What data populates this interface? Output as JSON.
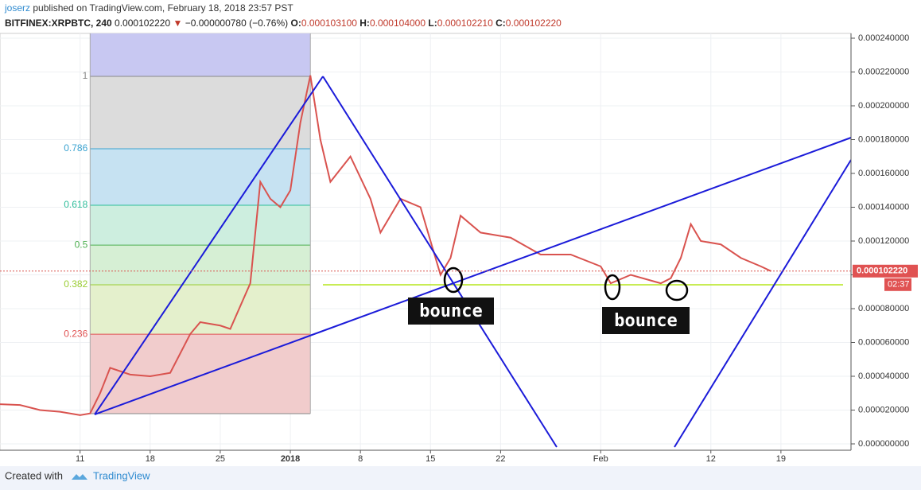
{
  "header": {
    "author": "joserz",
    "published": "published on TradingView.com, February 18, 2018 23:57 PST",
    "symbol": "BITFINEX:XRPBTC, 240",
    "last": "0.000102220",
    "arrow": "▼",
    "change": "−0.000000780 (−0.76%)",
    "open_label": "O:",
    "open": "0.000103100",
    "high_label": "H:",
    "high": "0.000104000",
    "low_label": "L:",
    "low": "0.000102210",
    "close_label": "C:",
    "close": "0.000102220"
  },
  "footer": {
    "created": "Created with",
    "brand": "TradingView"
  },
  "chart_data": {
    "type": "line",
    "x": [
      "2017-12-03",
      "2017-12-05",
      "2017-12-07",
      "2017-12-09",
      "2017-12-11",
      "2017-12-12",
      "2017-12-13",
      "2017-12-14",
      "2017-12-16",
      "2017-12-18",
      "2017-12-20",
      "2017-12-22",
      "2017-12-23",
      "2017-12-25",
      "2017-12-26",
      "2017-12-28",
      "2017-12-29",
      "2017-12-30",
      "2017-12-31",
      "2018-01-01",
      "2018-01-02",
      "2018-01-03",
      "2018-01-04",
      "2018-01-05",
      "2018-01-07",
      "2018-01-09",
      "2018-01-10",
      "2018-01-12",
      "2018-01-14",
      "2018-01-16",
      "2018-01-17",
      "2018-01-18",
      "2018-01-20",
      "2018-01-23",
      "2018-01-26",
      "2018-01-29",
      "2018-02-01",
      "2018-02-02",
      "2018-02-04",
      "2018-02-07",
      "2018-02-08",
      "2018-02-09",
      "2018-02-10",
      "2018-02-11",
      "2018-02-13",
      "2018-02-15",
      "2018-02-17",
      "2018-02-18"
    ],
    "series": [
      {
        "name": "XRPBTC",
        "color": "#d9534f",
        "values": [
          2.35e-05,
          2.3e-05,
          2e-05,
          1.9e-05,
          1.7e-05,
          1.8e-05,
          3e-05,
          4.5e-05,
          4.1e-05,
          4e-05,
          4.2e-05,
          6.5e-05,
          7.2e-05,
          7e-05,
          6.8e-05,
          9.5e-05,
          0.000155,
          0.000145,
          0.00014,
          0.00015,
          0.00019,
          0.000218,
          0.00018,
          0.000155,
          0.00017,
          0.000145,
          0.000125,
          0.000145,
          0.00014,
          0.0001,
          0.00011,
          0.000135,
          0.000125,
          0.000122,
          0.000112,
          0.000112,
          0.000105,
          9.5e-05,
          0.0001,
          9.5e-05,
          9.8e-05,
          0.00011,
          0.00013,
          0.00012,
          0.000118,
          0.00011,
          0.000105,
          0.00010222
        ]
      }
    ],
    "xlim": [
      "2017-12-03",
      "2018-02-26"
    ],
    "xticks": [
      {
        "value": "2017-12-11",
        "label": "11"
      },
      {
        "value": "2017-12-18",
        "label": "18"
      },
      {
        "value": "2017-12-25",
        "label": "25"
      },
      {
        "value": "2018-01-01",
        "label": "2018"
      },
      {
        "value": "2018-01-08",
        "label": "8"
      },
      {
        "value": "2018-01-15",
        "label": "15"
      },
      {
        "value": "2018-01-22",
        "label": "22"
      },
      {
        "value": "2018-02-01",
        "label": "Feb"
      },
      {
        "value": "2018-02-12",
        "label": "12"
      },
      {
        "value": "2018-02-19",
        "label": "19"
      }
    ],
    "ylim": [
      0,
      0.00024
    ],
    "yticks": [
      {
        "value": 0,
        "label": "0.000000000"
      },
      {
        "value": 2e-05,
        "label": "0.000020000"
      },
      {
        "value": 4e-05,
        "label": "0.000040000"
      },
      {
        "value": 6e-05,
        "label": "0.000060000"
      },
      {
        "value": 8e-05,
        "label": "0.000080000"
      },
      {
        "value": 0.0001,
        "label": "0.000100000"
      },
      {
        "value": 0.00012,
        "label": "0.000120000"
      },
      {
        "value": 0.00014,
        "label": "0.000140000"
      },
      {
        "value": 0.00016,
        "label": "0.000160000"
      },
      {
        "value": 0.00018,
        "label": "0.000180000"
      },
      {
        "value": 0.0002,
        "label": "0.000200000"
      },
      {
        "value": 0.00022,
        "label": "0.000220000"
      },
      {
        "value": 0.00024,
        "label": "0.000240000"
      }
    ],
    "grid": true,
    "price_label": {
      "value": 0.00010222,
      "label": "0.000102220",
      "countdown": "02:37"
    },
    "fib": {
      "x_range": [
        "2017-12-12",
        "2018-01-03"
      ],
      "levels": [
        {
          "level": 1,
          "price": 0.0002174,
          "color": "#888888",
          "fill": "#dcdcdc"
        },
        {
          "level": 0.786,
          "price": 0.0001746,
          "color": "#3ba3d0",
          "fill": "#c6e2f2"
        },
        {
          "level": 0.618,
          "price": 0.0001412,
          "color": "#2ebd9a",
          "fill": "#cdeedf"
        },
        {
          "level": 0.5,
          "price": 0.0001176,
          "color": "#4caf50",
          "fill": "#d6efd4"
        },
        {
          "level": 0.382,
          "price": 9.41e-05,
          "color": "#9acd32",
          "fill": "#e4f0cc"
        },
        {
          "level": 0.236,
          "price": 6.49e-05,
          "color": "#e05252",
          "fill": "#f1cccc"
        }
      ],
      "base_price": 1.79e-05
    },
    "annotations": [
      "bounce",
      "bounce"
    ]
  }
}
